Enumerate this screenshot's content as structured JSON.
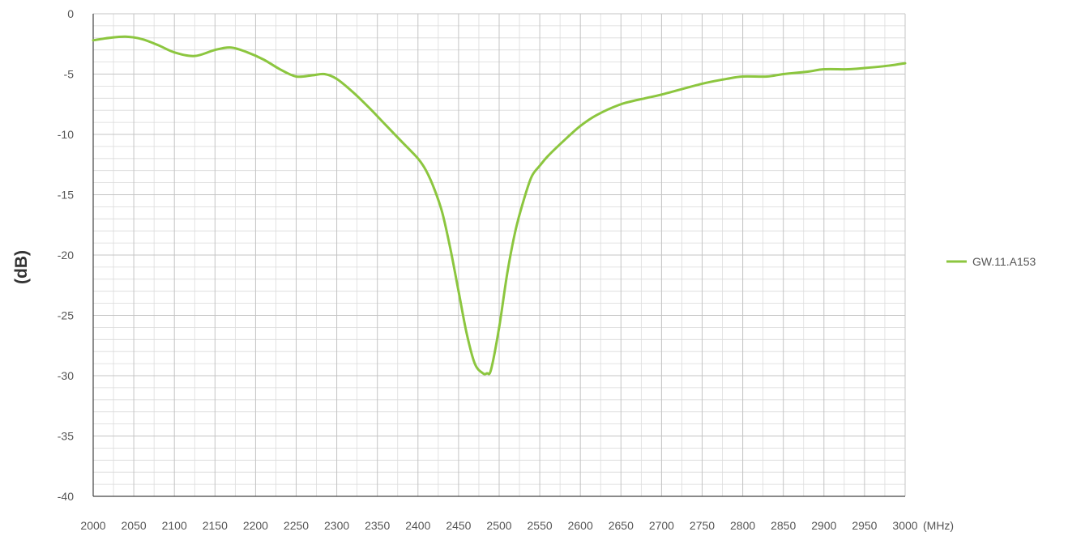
{
  "chart_data": {
    "type": "line",
    "title": "",
    "xlabel": "",
    "ylabel": "(dB)",
    "x_unit": "(MHz)",
    "xlim": [
      2000,
      3000
    ],
    "ylim": [
      -40,
      0
    ],
    "x_ticks": [
      2000,
      2050,
      2100,
      2150,
      2200,
      2250,
      2300,
      2350,
      2400,
      2450,
      2500,
      2550,
      2600,
      2650,
      2700,
      2750,
      2800,
      2850,
      2900,
      2950,
      3000
    ],
    "y_ticks": [
      0,
      -5,
      -10,
      -15,
      -20,
      -25,
      -30,
      -35,
      -40
    ],
    "grid": true,
    "legend_position": "right",
    "series": [
      {
        "name": "GW.11.A153",
        "color": "#8cc63f",
        "x": [
          2000,
          2020,
          2040,
          2060,
          2080,
          2100,
          2125,
          2150,
          2170,
          2190,
          2210,
          2230,
          2250,
          2270,
          2285,
          2300,
          2320,
          2340,
          2360,
          2380,
          2400,
          2410,
          2420,
          2430,
          2440,
          2450,
          2460,
          2470,
          2480,
          2485,
          2490,
          2500,
          2510,
          2520,
          2530,
          2540,
          2550,
          2560,
          2580,
          2600,
          2620,
          2650,
          2680,
          2700,
          2750,
          2780,
          2800,
          2830,
          2850,
          2880,
          2900,
          2930,
          2950,
          2980,
          3000
        ],
        "values": [
          -2.2,
          -2.0,
          -1.9,
          -2.1,
          -2.6,
          -3.2,
          -3.5,
          -3.0,
          -2.8,
          -3.2,
          -3.8,
          -4.6,
          -5.2,
          -5.1,
          -5.0,
          -5.4,
          -6.5,
          -7.8,
          -9.2,
          -10.6,
          -12.0,
          -13.0,
          -14.5,
          -16.5,
          -19.5,
          -23.0,
          -26.5,
          -29.0,
          -29.8,
          -29.8,
          -29.5,
          -26.0,
          -21.5,
          -18.0,
          -15.5,
          -13.5,
          -12.6,
          -11.8,
          -10.5,
          -9.3,
          -8.4,
          -7.5,
          -7.0,
          -6.7,
          -5.8,
          -5.4,
          -5.2,
          -5.2,
          -5.0,
          -4.8,
          -4.6,
          -4.6,
          -4.5,
          -4.3,
          -4.1
        ]
      }
    ]
  }
}
